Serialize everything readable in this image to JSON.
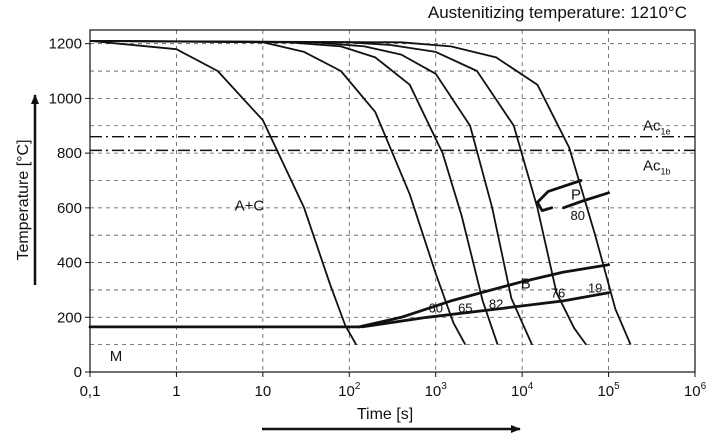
{
  "chart_data": {
    "type": "line",
    "title": "Austenitizing temperature: 1210°C",
    "xlabel": "Time [s]",
    "ylabel": "Temperature [°C]",
    "xscale": "log",
    "xlim": [
      0.1,
      1000000
    ],
    "ylim": [
      0,
      1250
    ],
    "grid": true,
    "x_ticks": [
      {
        "value": 0.1,
        "label": "0,1"
      },
      {
        "value": 1,
        "label": "1"
      },
      {
        "value": 10,
        "label": "10"
      },
      {
        "value": 100,
        "label": "10",
        "exp": "2"
      },
      {
        "value": 1000,
        "label": "10",
        "exp": "3"
      },
      {
        "value": 10000,
        "label": "10",
        "exp": "4"
      },
      {
        "value": 100000,
        "label": "10",
        "exp": "5"
      },
      {
        "value": 1000000,
        "label": "10",
        "exp": "6"
      }
    ],
    "y_ticks": [
      {
        "value": 0,
        "label": "0"
      },
      {
        "value": 200,
        "label": "200"
      },
      {
        "value": 400,
        "label": "400"
      },
      {
        "value": 600,
        "label": "600"
      },
      {
        "value": 800,
        "label": "800"
      },
      {
        "value": 1000,
        "label": "1000"
      },
      {
        "value": 1200,
        "label": "1200"
      }
    ],
    "reference_lines": [
      {
        "label": "Ac",
        "sub": "1e",
        "y": 860,
        "style": "dash-dot"
      },
      {
        "label": "Ac",
        "sub": "1b",
        "y": 810,
        "style": "dash-dot"
      }
    ],
    "cooling_curves": [
      {
        "points": [
          [
            0.1,
            1210
          ],
          [
            1,
            1180
          ],
          [
            3,
            1100
          ],
          [
            10,
            920
          ],
          [
            30,
            600
          ],
          [
            60,
            320
          ],
          [
            90,
            170
          ],
          [
            120,
            100
          ]
        ]
      },
      {
        "points": [
          [
            0.1,
            1210
          ],
          [
            10,
            1205
          ],
          [
            30,
            1170
          ],
          [
            80,
            1100
          ],
          [
            200,
            950
          ],
          [
            500,
            650
          ],
          [
            1000,
            360
          ],
          [
            1600,
            180
          ],
          [
            2200,
            100
          ]
        ]
      },
      {
        "points": [
          [
            0.1,
            1210
          ],
          [
            20,
            1205
          ],
          [
            80,
            1190
          ],
          [
            200,
            1150
          ],
          [
            500,
            1050
          ],
          [
            1200,
            800
          ],
          [
            2000,
            570
          ],
          [
            3500,
            260
          ],
          [
            5200,
            100
          ]
        ]
      },
      {
        "points": [
          [
            0.1,
            1210
          ],
          [
            40,
            1205
          ],
          [
            150,
            1190
          ],
          [
            400,
            1160
          ],
          [
            1000,
            1090
          ],
          [
            2500,
            900
          ],
          [
            4500,
            600
          ],
          [
            7500,
            270
          ],
          [
            13000,
            100
          ]
        ]
      },
      {
        "points": [
          [
            0.1,
            1210
          ],
          [
            100,
            1205
          ],
          [
            300,
            1195
          ],
          [
            1000,
            1170
          ],
          [
            3000,
            1100
          ],
          [
            8000,
            900
          ],
          [
            15000,
            600
          ],
          [
            25000,
            290
          ],
          [
            40000,
            160
          ],
          [
            55000,
            100
          ]
        ]
      },
      {
        "points": [
          [
            0.1,
            1210
          ],
          [
            400,
            1205
          ],
          [
            1500,
            1190
          ],
          [
            5000,
            1150
          ],
          [
            15000,
            1050
          ],
          [
            35000,
            820
          ],
          [
            70000,
            500
          ],
          [
            120000,
            230
          ],
          [
            180000,
            100
          ]
        ]
      }
    ],
    "transformation_lines": [
      {
        "name": "martensite start",
        "points": [
          [
            0.1,
            165
          ],
          [
            130,
            165
          ]
        ]
      },
      {
        "name": "bainite start",
        "points": [
          [
            130,
            165
          ],
          [
            400,
            200
          ],
          [
            1500,
            260
          ],
          [
            10000,
            330
          ],
          [
            30000,
            365
          ],
          [
            100000,
            392
          ]
        ]
      },
      {
        "name": "bainite finish",
        "points": [
          [
            140,
            165
          ],
          [
            800,
            200
          ],
          [
            5000,
            230
          ],
          [
            30000,
            260
          ],
          [
            100000,
            290
          ]
        ]
      },
      {
        "name": "pearlite nose",
        "points": [
          [
            48000,
            700
          ],
          [
            20000,
            660
          ],
          [
            15000,
            620
          ],
          [
            17000,
            590
          ],
          [
            22000,
            600
          ]
        ]
      },
      {
        "name": "pearlite finish",
        "points": [
          [
            30000,
            600
          ],
          [
            50000,
            625
          ],
          [
            100000,
            655
          ]
        ]
      }
    ],
    "annotations": [
      {
        "text": "A+C",
        "x": 7,
        "y": 590
      },
      {
        "text": "B",
        "x": 11000,
        "y": 305
      },
      {
        "text": "P",
        "x": 42000,
        "y": 630
      },
      {
        "text": "M",
        "x": 0.2,
        "y": 40
      },
      {
        "text": "60",
        "x": 1000,
        "y": 218
      },
      {
        "text": "65",
        "x": 2200,
        "y": 218
      },
      {
        "text": "82",
        "x": 5000,
        "y": 232
      },
      {
        "text": "76",
        "x": 26000,
        "y": 272
      },
      {
        "text": "19",
        "x": 70000,
        "y": 290
      },
      {
        "text": "80",
        "x": 44000,
        "y": 555
      }
    ],
    "colors": {
      "line": "#111111",
      "grid": "#555555",
      "background": "#ffffff"
    }
  }
}
